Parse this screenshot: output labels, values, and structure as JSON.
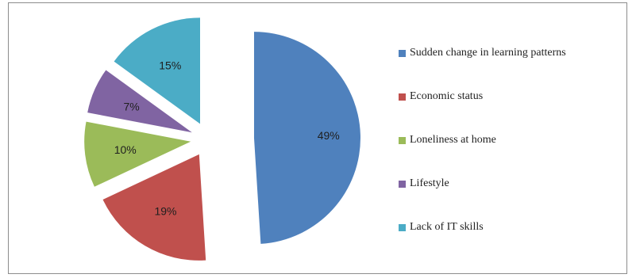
{
  "chart_data": {
    "type": "pie",
    "title": "",
    "legend_position": "right",
    "slices": [
      {
        "label": "Sudden change in learning patterns",
        "value": 49,
        "display": "49%",
        "color": "#4f81bd"
      },
      {
        "label": "Economic status",
        "value": 19,
        "display": "19%",
        "color": "#c0504d"
      },
      {
        "label": "Loneliness at home",
        "value": 10,
        "display": "10%",
        "color": "#9bbb59"
      },
      {
        "label": "Lifestyle",
        "value": 7,
        "display": "7%",
        "color": "#8064a2"
      },
      {
        "label": "Lack of IT skills",
        "value": 15,
        "display": "15%",
        "color": "#4bacc6"
      }
    ]
  }
}
